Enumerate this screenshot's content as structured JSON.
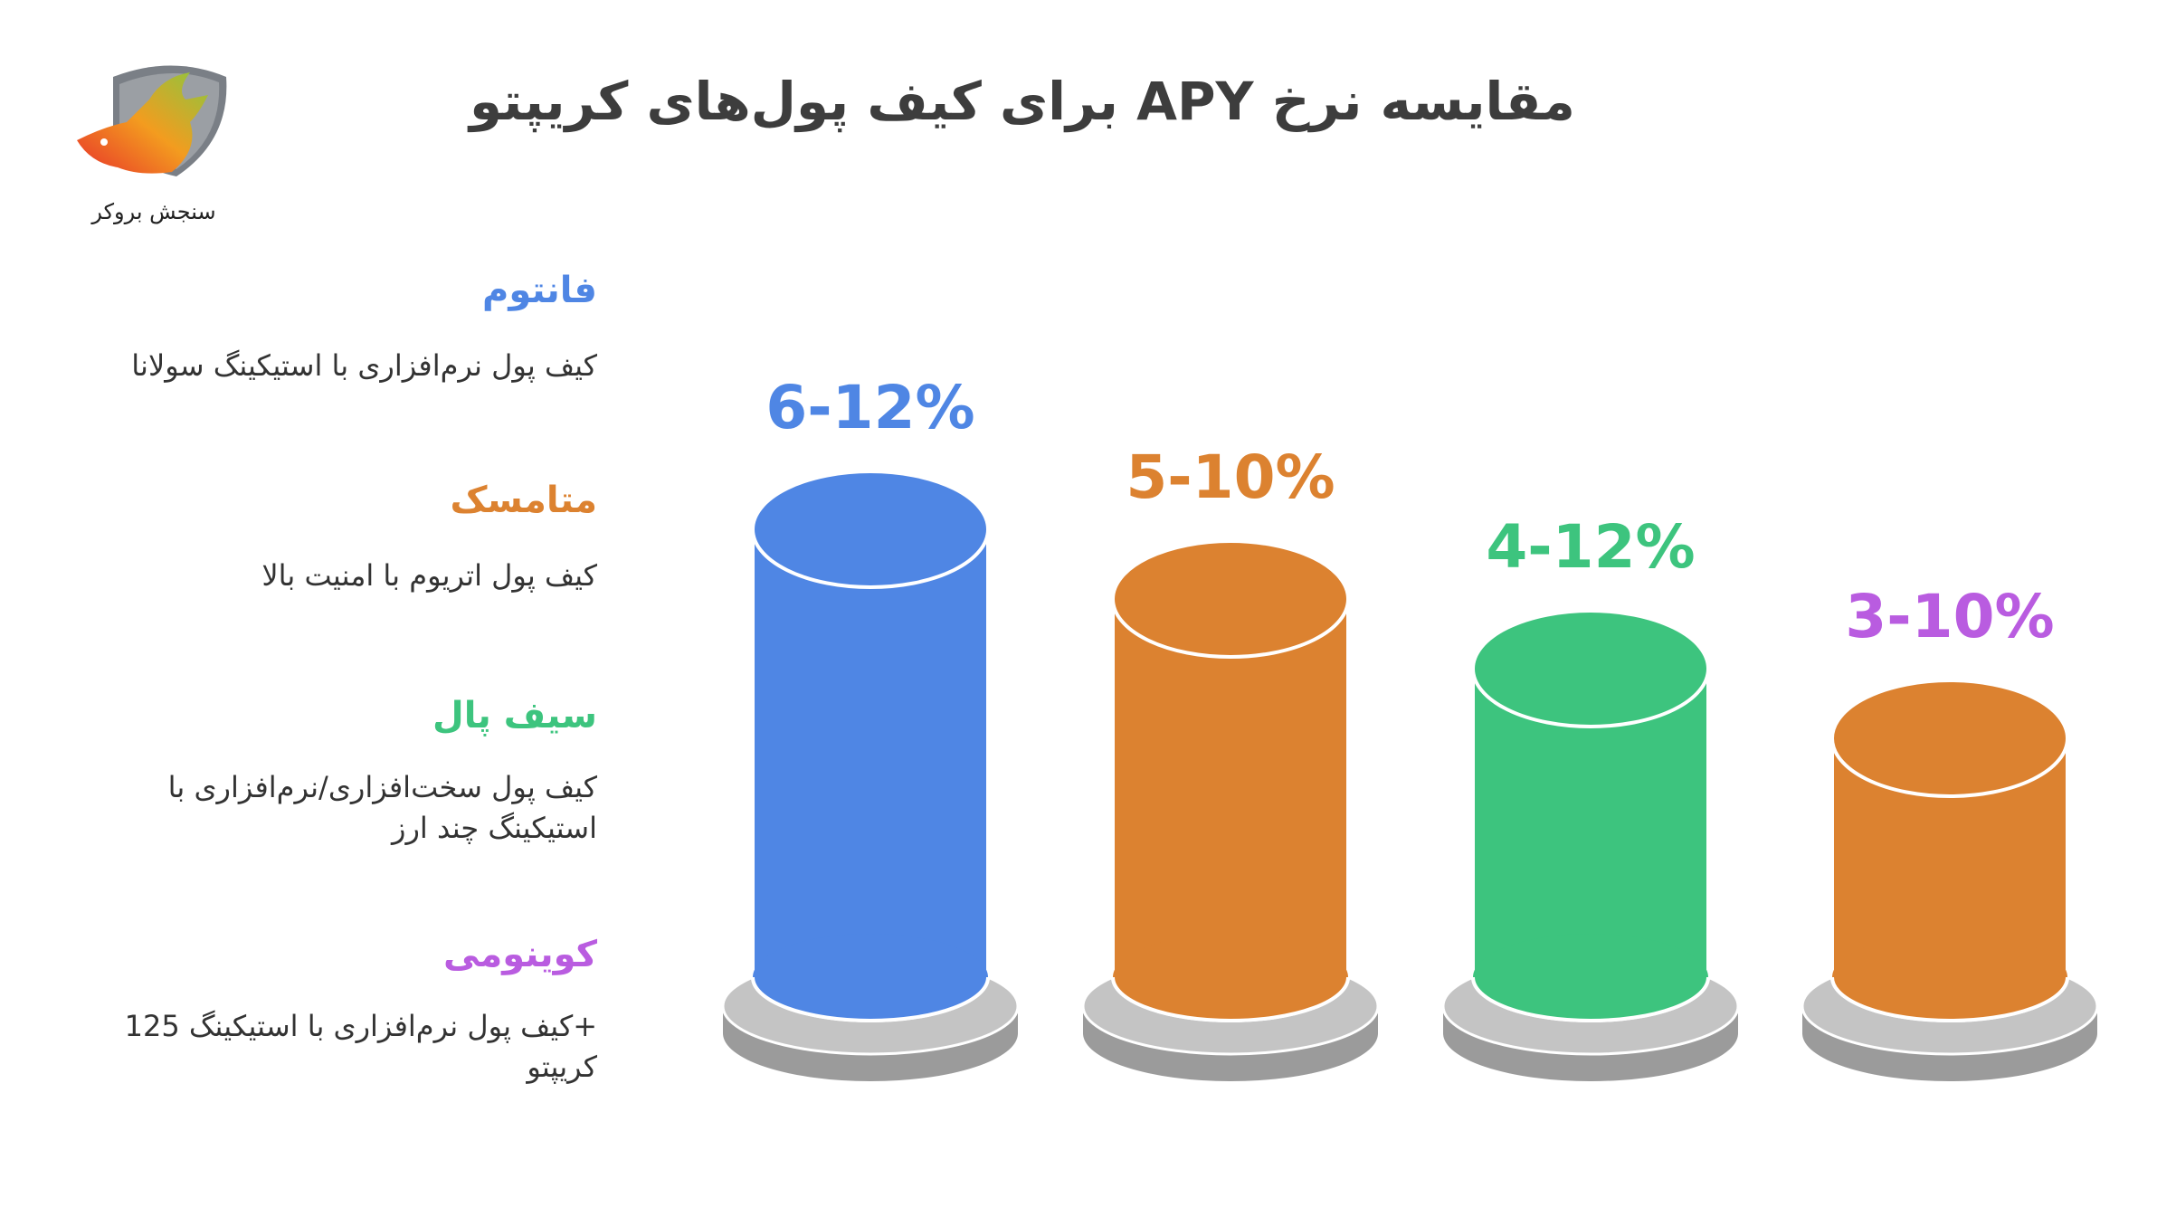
{
  "title": "مقایسه نرخ APY برای کیف پول‌های کریپتو",
  "logo": {
    "text": "سنجش بروکر"
  },
  "colors": {
    "blue": "#4f86e4",
    "orange": "#dc8230",
    "green": "#3dc47e",
    "purple": "#b95ce0"
  },
  "legend": [
    {
      "name": "فانتوم",
      "desc_lines": [
        "کیف پول نرم‌افزاری با استیکینگ سولانا"
      ]
    },
    {
      "name": "متامسک",
      "desc_lines": [
        "کیف پول اتریوم با امنیت بالا"
      ]
    },
    {
      "name": "سیف پال",
      "desc_lines": [
        "کیف پول سخت‌افزاری/نرم‌افزاری با",
        "استیکینگ چند ارز"
      ]
    },
    {
      "name": "کوینومی",
      "desc_lines": [
        "+کیف پول نرم‌افزاری با استیکینگ 125",
        "کریپتو"
      ]
    }
  ],
  "chart_data": {
    "type": "bar",
    "categories": [
      "فانتوم",
      "متامسک",
      "سیف پال",
      "کوینومی"
    ],
    "labels": [
      "6-12%",
      "5-10%",
      "4-12%",
      "3-10%"
    ],
    "ranges": [
      [
        6,
        12
      ],
      [
        5,
        10
      ],
      [
        4,
        12
      ],
      [
        3,
        10
      ]
    ],
    "label_colors": [
      "#4f86e4",
      "#dc8230",
      "#3dc47e",
      "#b95ce0"
    ],
    "bar_colors": [
      "#4f86e4",
      "#dc8230",
      "#3dc47e",
      "#dc8230"
    ]
  }
}
